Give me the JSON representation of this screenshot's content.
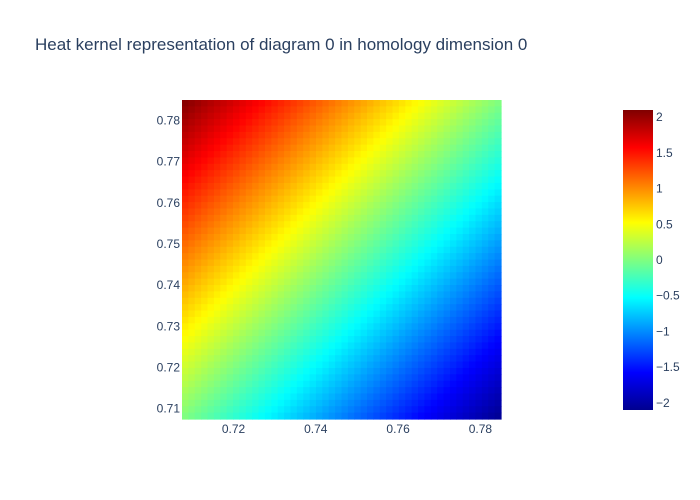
{
  "chart_data": {
    "type": "heatmap",
    "title": "Heat kernel representation of diagram 0 in homology dimension 0",
    "xlabel": "",
    "ylabel": "",
    "xlim": [
      0.7075,
      0.785
    ],
    "ylim": [
      0.7075,
      0.785
    ],
    "x_ticks": [
      0.72,
      0.74,
      0.76,
      0.78
    ],
    "x_tick_labels": [
      "0.72",
      "0.74",
      "0.76",
      "0.78"
    ],
    "y_ticks": [
      0.71,
      0.72,
      0.73,
      0.74,
      0.75,
      0.76,
      0.77,
      0.78
    ],
    "y_tick_labels": [
      "0.71",
      "0.72",
      "0.73",
      "0.74",
      "0.75",
      "0.76",
      "0.77",
      "0.78"
    ],
    "grid_size": 50,
    "value_model": "value = k * (y - x), strongest at upper-left corner, weakest at lower-right corner, zero along the diagonal",
    "corner_values": {
      "top_left": 2.1,
      "bottom_right": -2.1,
      "top_right": 0,
      "bottom_left": 0
    },
    "zlim": [
      -2.1,
      2.1
    ],
    "colorscale": "Jet",
    "colorbar": {
      "ticks": [
        2,
        1.5,
        1,
        0.5,
        0,
        -0.5,
        -1,
        -1.5,
        -2
      ],
      "tick_labels": [
        "2",
        "1.5",
        "1",
        "0.5",
        "0",
        "−0.5",
        "−1",
        "−1.5",
        "−2"
      ]
    },
    "grid": false,
    "legend": "none"
  }
}
